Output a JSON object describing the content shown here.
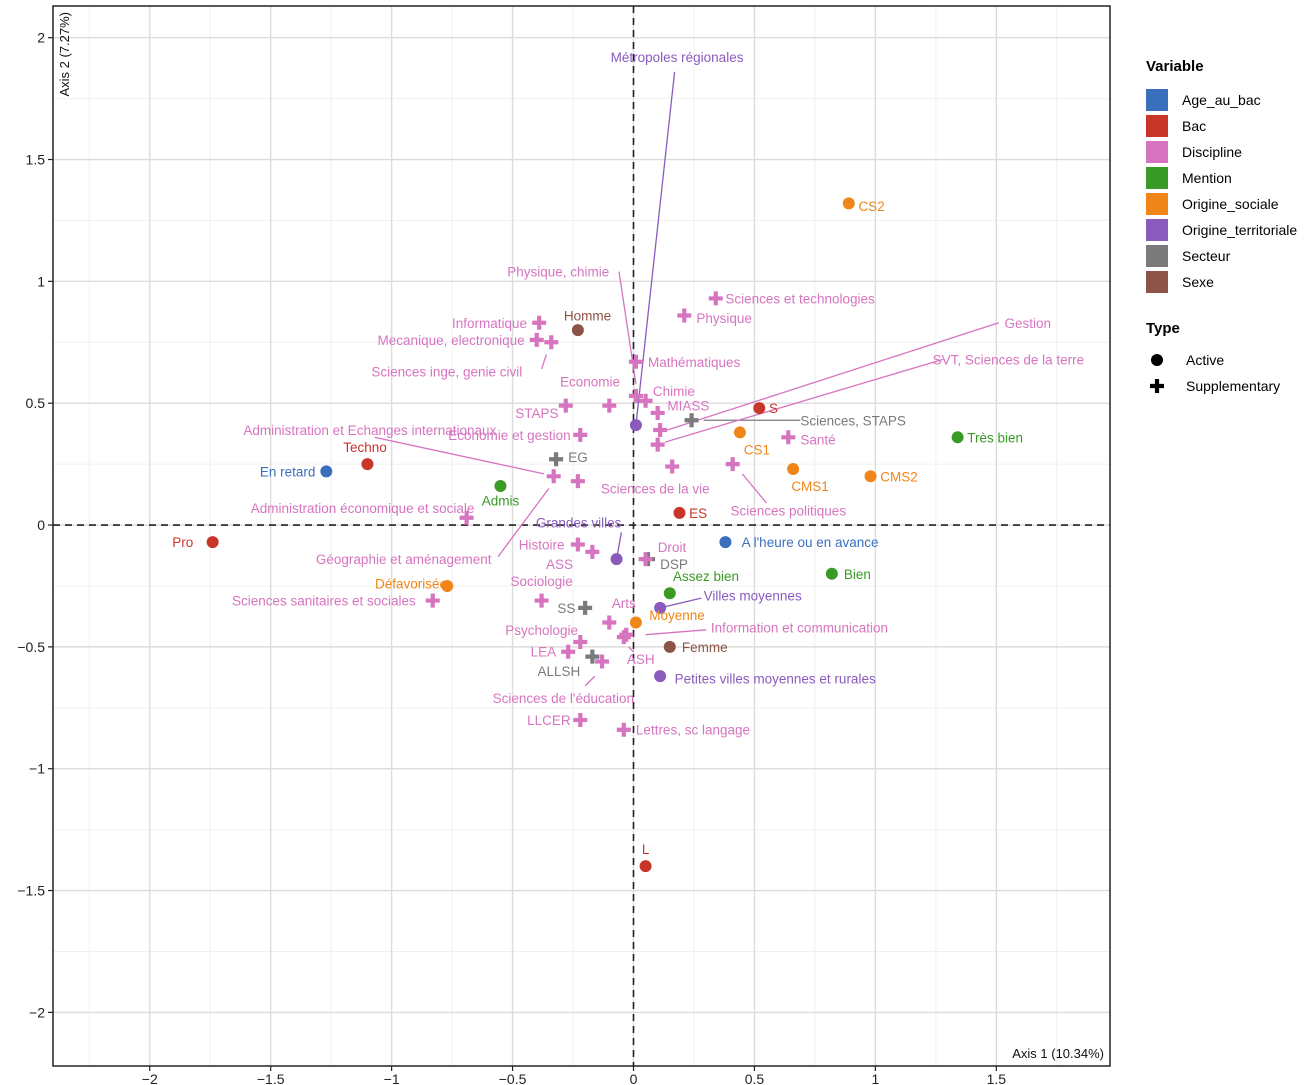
{
  "chart_data": {
    "type": "scatter",
    "title": "",
    "xlabel": "Axis 1 (10.34%)",
    "ylabel": "Axis 2 (7.27%)",
    "xlim": [
      -2.4,
      1.97
    ],
    "ylim": [
      -2.22,
      2.13
    ],
    "x_ticks": [
      -2,
      -1.5,
      -1,
      -0.5,
      0,
      0.5,
      1,
      1.5
    ],
    "x_tick_labels": [
      "−2",
      "−1.5",
      "−1",
      "−0.5",
      "0",
      "0.5",
      "1",
      "1.5"
    ],
    "y_ticks": [
      -2,
      -1.5,
      -1,
      -0.5,
      0,
      0.5,
      1,
      1.5,
      2
    ],
    "y_tick_labels": [
      "−2",
      "−1.5",
      "−1",
      "−0.5",
      "0",
      "0.5",
      "1",
      "1.5",
      "2"
    ],
    "grid": true,
    "legend_position": "right",
    "legend": {
      "variable_title": "Variable",
      "variables": [
        {
          "name": "Age_au_bac",
          "color": "#3a6fbe"
        },
        {
          "name": "Bac",
          "color": "#c8362a"
        },
        {
          "name": "Discipline",
          "color": "#d774c0"
        },
        {
          "name": "Mention",
          "color": "#3a9a26"
        },
        {
          "name": "Origine_sociale",
          "color": "#f08519"
        },
        {
          "name": "Origine_territoriale",
          "color": "#8a5bbd"
        },
        {
          "name": "Secteur",
          "color": "#7a7a7a"
        },
        {
          "name": "Sexe",
          "color": "#8b5447"
        }
      ],
      "type_title": "Type",
      "types": [
        {
          "name": "Active",
          "shape": "circle"
        },
        {
          "name": "Supplementary",
          "shape": "cross"
        }
      ]
    },
    "points": [
      {
        "label": "En retard",
        "variable": "Age_au_bac",
        "type": "Active",
        "x": -1.27,
        "y": 0.22,
        "lx": -1.43,
        "ly": 0.22,
        "anchor": "middle"
      },
      {
        "label": "A l'heure ou en avance",
        "variable": "Age_au_bac",
        "type": "Active",
        "x": 0.38,
        "y": -0.07,
        "lx": 0.73,
        "ly": -0.07,
        "anchor": "middle"
      },
      {
        "label": "Pro",
        "variable": "Bac",
        "type": "Active",
        "x": -1.74,
        "y": -0.07,
        "lx": -1.82,
        "ly": -0.07,
        "anchor": "end"
      },
      {
        "label": "Techno",
        "variable": "Bac",
        "type": "Active",
        "x": -1.1,
        "y": 0.25,
        "lx": -1.11,
        "ly": 0.32,
        "anchor": "middle"
      },
      {
        "label": "S",
        "variable": "Bac",
        "type": "Active",
        "x": 0.52,
        "y": 0.48,
        "lx": 0.56,
        "ly": 0.48,
        "anchor": "start"
      },
      {
        "label": "ES",
        "variable": "Bac",
        "type": "Active",
        "x": 0.19,
        "y": 0.05,
        "lx": 0.23,
        "ly": 0.05,
        "anchor": "start"
      },
      {
        "label": "L",
        "variable": "Bac",
        "type": "Active",
        "x": 0.05,
        "y": -1.4,
        "lx": 0.05,
        "ly": -1.33,
        "anchor": "middle"
      },
      {
        "label": "Très bien",
        "variable": "Mention",
        "type": "Active",
        "x": 1.34,
        "y": 0.36,
        "lx": 1.38,
        "ly": 0.36,
        "anchor": "start"
      },
      {
        "label": "Bien",
        "variable": "Mention",
        "type": "Active",
        "x": 0.82,
        "y": -0.2,
        "lx": 0.87,
        "ly": -0.2,
        "anchor": "start"
      },
      {
        "label": "Assez bien",
        "variable": "Mention",
        "type": "Active",
        "x": 0.15,
        "y": -0.28,
        "lx": 0.3,
        "ly": -0.21,
        "anchor": "middle"
      },
      {
        "label": "Admis",
        "variable": "Mention",
        "type": "Active",
        "x": -0.55,
        "y": 0.16,
        "lx": -0.55,
        "ly": 0.1,
        "anchor": "middle"
      },
      {
        "label": "CS2",
        "variable": "Origine_sociale",
        "type": "Active",
        "x": 0.89,
        "y": 1.32,
        "lx": 0.93,
        "ly": 1.31,
        "anchor": "start"
      },
      {
        "label": "CS1",
        "variable": "Origine_sociale",
        "type": "Active",
        "x": 0.44,
        "y": 0.38,
        "lx": 0.51,
        "ly": 0.31,
        "anchor": "middle"
      },
      {
        "label": "CMS1",
        "variable": "Origine_sociale",
        "type": "Active",
        "x": 0.66,
        "y": 0.23,
        "lx": 0.73,
        "ly": 0.16,
        "anchor": "middle"
      },
      {
        "label": "CMS2",
        "variable": "Origine_sociale",
        "type": "Active",
        "x": 0.98,
        "y": 0.2,
        "lx": 1.02,
        "ly": 0.2,
        "anchor": "start"
      },
      {
        "label": "Défavorisée",
        "variable": "Origine_sociale",
        "type": "Active",
        "x": -0.77,
        "y": -0.25,
        "lx": -0.92,
        "ly": -0.24,
        "anchor": "middle"
      },
      {
        "label": "Moyenne",
        "variable": "Origine_sociale",
        "type": "Active",
        "x": 0.01,
        "y": -0.4,
        "lx": 0.18,
        "ly": -0.37,
        "anchor": "middle"
      },
      {
        "label": "Métropoles régionales",
        "variable": "Origine_territoriale",
        "type": "Active",
        "x": 0.01,
        "y": 0.41,
        "lx": 0.18,
        "ly": 1.92,
        "anchor": "middle",
        "line": [
          0.01,
          0.41,
          0.17,
          1.86
        ]
      },
      {
        "label": "Grandes villes",
        "variable": "Origine_territoriale",
        "type": "Active",
        "x": -0.07,
        "y": -0.14,
        "lx": -0.05,
        "ly": 0.01,
        "anchor": "end",
        "line": [
          -0.07,
          -0.14,
          -0.05,
          -0.03
        ]
      },
      {
        "label": "Villes moyennes",
        "variable": "Origine_territoriale",
        "type": "Active",
        "x": 0.11,
        "y": -0.34,
        "lx": 0.29,
        "ly": -0.29,
        "anchor": "start",
        "line": [
          0.11,
          -0.34,
          0.28,
          -0.3
        ]
      },
      {
        "label": "Petites villes moyennes et rurales",
        "variable": "Origine_territoriale",
        "type": "Active",
        "x": 0.11,
        "y": -0.62,
        "lx": 0.17,
        "ly": -0.63,
        "anchor": "start"
      },
      {
        "label": "Homme",
        "variable": "Sexe",
        "type": "Active",
        "x": -0.23,
        "y": 0.8,
        "lx": -0.19,
        "ly": 0.86,
        "anchor": "middle"
      },
      {
        "label": "Femme",
        "variable": "Sexe",
        "type": "Active",
        "x": 0.15,
        "y": -0.5,
        "lx": 0.2,
        "ly": -0.5,
        "anchor": "start"
      },
      {
        "label": "EG",
        "variable": "Secteur",
        "type": "Supplementary",
        "x": -0.32,
        "y": 0.27,
        "lx": -0.27,
        "ly": 0.28,
        "anchor": "start"
      },
      {
        "label": "Sciences, STAPS",
        "variable": "Secteur",
        "type": "Supplementary",
        "x": 0.24,
        "y": 0.43,
        "lx": 0.69,
        "ly": 0.43,
        "anchor": "start",
        "line": [
          0.29,
          0.43,
          0.69,
          0.43
        ]
      },
      {
        "label": "DSP",
        "variable": "Secteur",
        "type": "Supplementary",
        "x": 0.06,
        "y": -0.14,
        "lx": 0.11,
        "ly": -0.16,
        "anchor": "start"
      },
      {
        "label": "SS",
        "variable": "Secteur",
        "type": "Supplementary",
        "x": -0.2,
        "y": -0.34,
        "lx": -0.24,
        "ly": -0.34,
        "anchor": "end"
      },
      {
        "label": "ALLSH",
        "variable": "Secteur",
        "type": "Supplementary",
        "x": -0.17,
        "y": -0.54,
        "lx": -0.22,
        "ly": -0.6,
        "anchor": "end"
      },
      {
        "label": "Physique, chimie",
        "variable": "Discipline",
        "type": "Supplementary",
        "x": 0.01,
        "y": 0.53,
        "lx": -0.1,
        "ly": 1.04,
        "anchor": "end",
        "line": [
          0.01,
          0.58,
          -0.06,
          1.04
        ]
      },
      {
        "label": "Sciences et technologies",
        "variable": "Discipline",
        "type": "Supplementary",
        "x": 0.34,
        "y": 0.93,
        "lx": 0.38,
        "ly": 0.93,
        "anchor": "start"
      },
      {
        "label": "Physique",
        "variable": "Discipline",
        "type": "Supplementary",
        "x": 0.21,
        "y": 0.86,
        "lx": 0.26,
        "ly": 0.85,
        "anchor": "start"
      },
      {
        "label": "Informatique",
        "variable": "Discipline",
        "type": "Supplementary",
        "x": -0.39,
        "y": 0.83,
        "lx": -0.44,
        "ly": 0.83,
        "anchor": "end"
      },
      {
        "label": "Mecanique, electronique",
        "variable": "Discipline",
        "type": "Supplementary",
        "x": -0.4,
        "y": 0.76,
        "lx": -0.45,
        "ly": 0.76,
        "anchor": "end"
      },
      {
        "label": "Sciences inge, genie civil",
        "variable": "Discipline",
        "type": "Supplementary",
        "x": -0.34,
        "y": 0.75,
        "lx": -0.46,
        "ly": 0.63,
        "anchor": "end",
        "line": [
          -0.36,
          0.7,
          -0.38,
          0.64
        ]
      },
      {
        "label": "Mathématiques",
        "variable": "Discipline",
        "type": "Supplementary",
        "x": 0.01,
        "y": 0.67,
        "lx": 0.06,
        "ly": 0.67,
        "anchor": "start"
      },
      {
        "label": "Economie",
        "variable": "Discipline",
        "type": "Supplementary",
        "x": -0.1,
        "y": 0.49,
        "lx": -0.18,
        "ly": 0.59,
        "anchor": "middle"
      },
      {
        "label": "Chimie",
        "variable": "Discipline",
        "type": "Supplementary",
        "x": 0.05,
        "y": 0.51,
        "lx": 0.08,
        "ly": 0.55,
        "anchor": "start"
      },
      {
        "label": "STAPS",
        "variable": "Discipline",
        "type": "Supplementary",
        "x": -0.28,
        "y": 0.49,
        "lx": -0.31,
        "ly": 0.46,
        "anchor": "end"
      },
      {
        "label": "MIASS",
        "variable": "Discipline",
        "type": "Supplementary",
        "x": 0.1,
        "y": 0.46,
        "lx": 0.14,
        "ly": 0.49,
        "anchor": "start"
      },
      {
        "label": "Economie et gestion",
        "variable": "Discipline",
        "type": "Supplementary",
        "x": -0.22,
        "y": 0.37,
        "lx": -0.26,
        "ly": 0.37,
        "anchor": "end"
      },
      {
        "label": "Administration et Echanges internationaux",
        "variable": "Discipline",
        "type": "Supplementary",
        "x": -0.33,
        "y": 0.2,
        "lx": -1.09,
        "ly": 0.39,
        "anchor": "middle",
        "line": [
          -1.07,
          0.36,
          -0.37,
          0.21
        ]
      },
      {
        "label": "Gestion",
        "variable": "Discipline",
        "type": "Supplementary",
        "x": 0.11,
        "y": 0.39,
        "lx": 1.63,
        "ly": 0.83,
        "anchor": "middle",
        "line": [
          0.14,
          0.39,
          1.51,
          0.83
        ]
      },
      {
        "label": "SVT, Sciences de la terre",
        "variable": "Discipline",
        "type": "Supplementary",
        "x": 0.1,
        "y": 0.33,
        "lx": 1.55,
        "ly": 0.68,
        "anchor": "middle",
        "line": [
          0.13,
          0.34,
          1.28,
          0.68
        ]
      },
      {
        "label": "Santé",
        "variable": "Discipline",
        "type": "Supplementary",
        "x": 0.64,
        "y": 0.36,
        "lx": 0.69,
        "ly": 0.35,
        "anchor": "start"
      },
      {
        "label": "Sciences de la vie",
        "variable": "Discipline",
        "type": "Supplementary",
        "x": 0.16,
        "y": 0.24,
        "lx": 0.09,
        "ly": 0.15,
        "anchor": "middle"
      },
      {
        "label": "Sciences politiques",
        "variable": "Discipline",
        "type": "Supplementary",
        "x": 0.41,
        "y": 0.25,
        "lx": 0.64,
        "ly": 0.06,
        "anchor": "middle",
        "line": [
          0.45,
          0.21,
          0.55,
          0.09
        ]
      },
      {
        "label": "Administration économique et sociale",
        "variable": "Discipline",
        "type": "Supplementary",
        "x": -0.69,
        "y": 0.03,
        "lx": -1.12,
        "ly": 0.07,
        "anchor": "middle"
      },
      {
        "label": "Géographie et aménagement",
        "variable": "Discipline",
        "type": "Supplementary",
        "x": -0.23,
        "y": 0.18,
        "lx": -0.95,
        "ly": -0.14,
        "anchor": "middle",
        "line": [
          -0.35,
          0.15,
          -0.56,
          -0.13
        ]
      },
      {
        "label": "Histoire",
        "variable": "Discipline",
        "type": "Supplementary",
        "x": -0.23,
        "y": -0.08,
        "lx": -0.38,
        "ly": -0.08,
        "anchor": "middle"
      },
      {
        "label": "ASS",
        "variable": "Discipline",
        "type": "Supplementary",
        "x": -0.17,
        "y": -0.11,
        "lx": -0.25,
        "ly": -0.16,
        "anchor": "end"
      },
      {
        "label": "Droit",
        "variable": "Discipline",
        "type": "Supplementary",
        "x": 0.05,
        "y": -0.14,
        "lx": 0.1,
        "ly": -0.09,
        "anchor": "start"
      },
      {
        "label": "Sociologie",
        "variable": "Discipline",
        "type": "Supplementary",
        "x": -0.38,
        "y": -0.31,
        "lx": -0.38,
        "ly": -0.23,
        "anchor": "middle"
      },
      {
        "label": "Sciences sanitaires et sociales",
        "variable": "Discipline",
        "type": "Supplementary",
        "x": -0.83,
        "y": -0.31,
        "lx": -1.28,
        "ly": -0.31,
        "anchor": "middle"
      },
      {
        "label": "Arts",
        "variable": "Discipline",
        "type": "Supplementary",
        "x": -0.1,
        "y": -0.4,
        "lx": -0.09,
        "ly": -0.32,
        "anchor": "start"
      },
      {
        "label": "Psychologie",
        "variable": "Discipline",
        "type": "Supplementary",
        "x": -0.22,
        "y": -0.48,
        "lx": -0.38,
        "ly": -0.43,
        "anchor": "middle"
      },
      {
        "label": "Information et communication",
        "variable": "Discipline",
        "type": "Supplementary",
        "x": -0.03,
        "y": -0.45,
        "lx": 0.32,
        "ly": -0.42,
        "anchor": "start",
        "line": [
          0.05,
          -0.45,
          0.3,
          -0.43
        ]
      },
      {
        "label": "LEA",
        "variable": "Discipline",
        "type": "Supplementary",
        "x": -0.27,
        "y": -0.52,
        "lx": -0.32,
        "ly": -0.52,
        "anchor": "end"
      },
      {
        "label": "ASH",
        "variable": "Discipline",
        "type": "Supplementary",
        "x": -0.13,
        "y": -0.56,
        "lx": 0.03,
        "ly": -0.55,
        "anchor": "middle",
        "line": [
          -0.02,
          -0.5,
          0.0,
          -0.52
        ]
      },
      {
        "label": "Sciences de l'éducation",
        "variable": "Discipline",
        "type": "Supplementary",
        "x": -0.04,
        "y": -0.46,
        "lx": -0.29,
        "ly": -0.71,
        "anchor": "middle",
        "line": [
          -0.16,
          -0.62,
          -0.2,
          -0.66
        ]
      },
      {
        "label": "LLCER",
        "variable": "Discipline",
        "type": "Supplementary",
        "x": -0.22,
        "y": -0.8,
        "lx": -0.26,
        "ly": -0.8,
        "anchor": "end"
      },
      {
        "label": "Lettres, sc langage",
        "variable": "Discipline",
        "type": "Supplementary",
        "x": -0.04,
        "y": -0.84,
        "lx": 0.01,
        "ly": -0.84,
        "anchor": "start"
      }
    ]
  }
}
